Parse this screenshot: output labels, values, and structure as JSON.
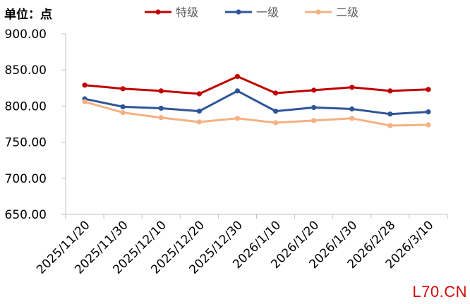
{
  "unit_label": "单位：点",
  "watermark": "L70.CN",
  "chart_data": {
    "type": "line",
    "categories": [
      "2025/11/20",
      "2025/11/30",
      "2025/12/10",
      "2025/12/20",
      "2025/12/30",
      "2026/1/10",
      "2026/1/20",
      "2026/1/30",
      "2026/2/28",
      "2026/3/10"
    ],
    "series": [
      {
        "name": "特级",
        "color": "#c00000",
        "values": [
          829,
          824,
          821,
          817,
          841,
          818,
          822,
          826,
          821,
          823
        ]
      },
      {
        "name": "一级",
        "color": "#2e5597",
        "values": [
          810,
          799,
          797,
          793,
          821,
          793,
          798,
          796,
          789,
          792
        ]
      },
      {
        "name": "二级",
        "color": "#f4b183",
        "values": [
          806,
          791,
          784,
          778,
          783,
          777,
          780,
          783,
          773,
          774
        ]
      }
    ],
    "yticks": [
      "650.00",
      "700.00",
      "750.00",
      "800.00",
      "850.00",
      "900.00"
    ],
    "ylim": [
      650,
      900
    ],
    "legend": "top-center",
    "grid": false
  }
}
